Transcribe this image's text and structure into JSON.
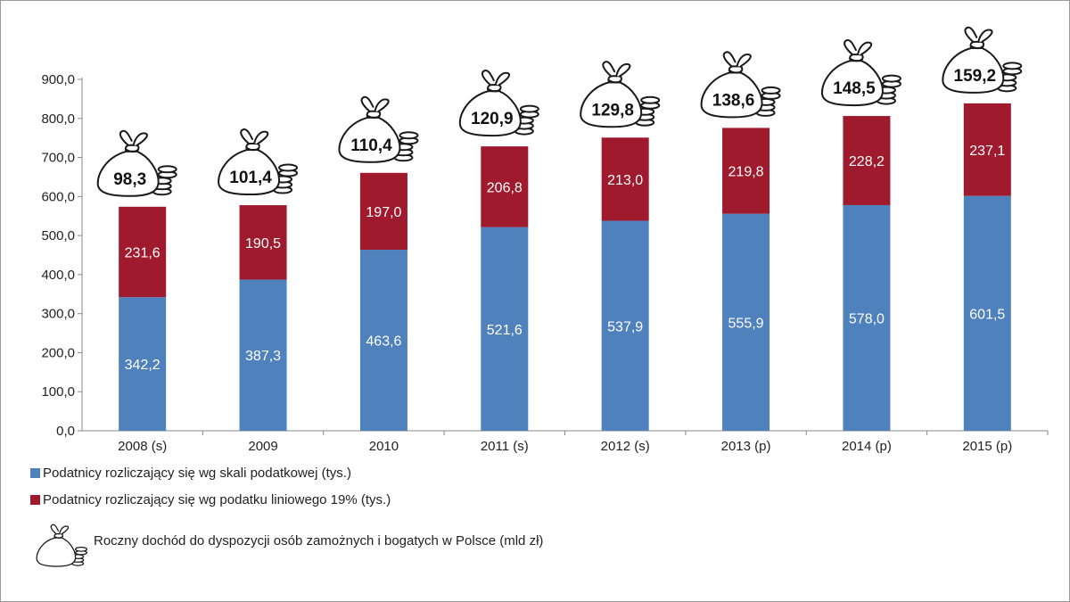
{
  "chart_data": {
    "type": "bar",
    "stacked": true,
    "categories": [
      "2008 (s)",
      "2009",
      "2010",
      "2011 (s)",
      "2012 (s)",
      "2013 (p)",
      "2014 (p)",
      "2015 (p)"
    ],
    "series": [
      {
        "name": "Podatnicy rozliczający się wg skali podatkowej (tys.)",
        "color": "#4f81bd",
        "values": [
          342.2,
          387.3,
          463.6,
          521.6,
          537.9,
          555.9,
          578.0,
          601.5
        ],
        "labels": [
          "342,2",
          "387,3",
          "463,6",
          "521,6",
          "537,9",
          "555,9",
          "578,0",
          "601,5"
        ]
      },
      {
        "name": "Podatnicy rozliczający się wg podatku liniowego 19% (tys.)",
        "color": "#a01a2e",
        "values": [
          231.6,
          190.5,
          197.0,
          206.8,
          213.0,
          219.8,
          228.2,
          237.1
        ],
        "labels": [
          "231,6",
          "190,5",
          "197,0",
          "206,8",
          "213,0",
          "219,8",
          "228,2",
          "237,1"
        ]
      }
    ],
    "bag_series": {
      "name": "Roczny dochód do dyspozycji osób zamożnych i bogatych w Polsce (mld zł)",
      "values": [
        98.3,
        101.4,
        110.4,
        120.9,
        129.8,
        138.6,
        148.5,
        159.2
      ],
      "labels": [
        "98,3",
        "101,4",
        "110,4",
        "120,9",
        "129,8",
        "138,6",
        "148,5",
        "159,2"
      ],
      "icon": "money-bag-icon"
    },
    "ylim": [
      0,
      900
    ],
    "yticks": [
      "0,0",
      "100,0",
      "200,0",
      "300,0",
      "400,0",
      "500,0",
      "600,0",
      "700,0",
      "800,0",
      "900,0"
    ],
    "legend_position": "bottom-left",
    "grid": false
  }
}
